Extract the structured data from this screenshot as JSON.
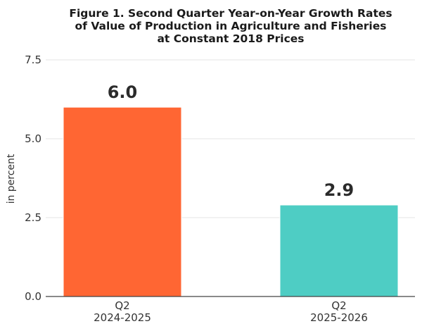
{
  "chart_data": {
    "type": "bar",
    "title": "Figure 1. Second Quarter Year-on-Year Growth Rates of Value of Production in Agriculture and Fisheries at Constant 2018 Prices",
    "title_lines": [
      "Figure 1. Second Quarter Year-on-Year Growth Rates",
      "of Value of Production in Agriculture and Fisheries",
      "at Constant 2018 Prices"
    ],
    "ylabel": "in percent",
    "xlabel": "",
    "categories": [
      [
        "Q2",
        "2024-2025"
      ],
      [
        "Q2",
        "2025-2026"
      ]
    ],
    "values": [
      6.0,
      2.9
    ],
    "value_labels": [
      "6.0",
      "2.9"
    ],
    "bar_colors": [
      "#FF6633",
      "#4ECDC4"
    ],
    "ylim": [
      0,
      7.5
    ],
    "yticks": [
      0,
      2.5,
      5,
      7.5
    ],
    "ytick_labels": [
      "0.0",
      "2.5",
      "5.0",
      "7.5"
    ],
    "grid": true,
    "legend": "none"
  }
}
